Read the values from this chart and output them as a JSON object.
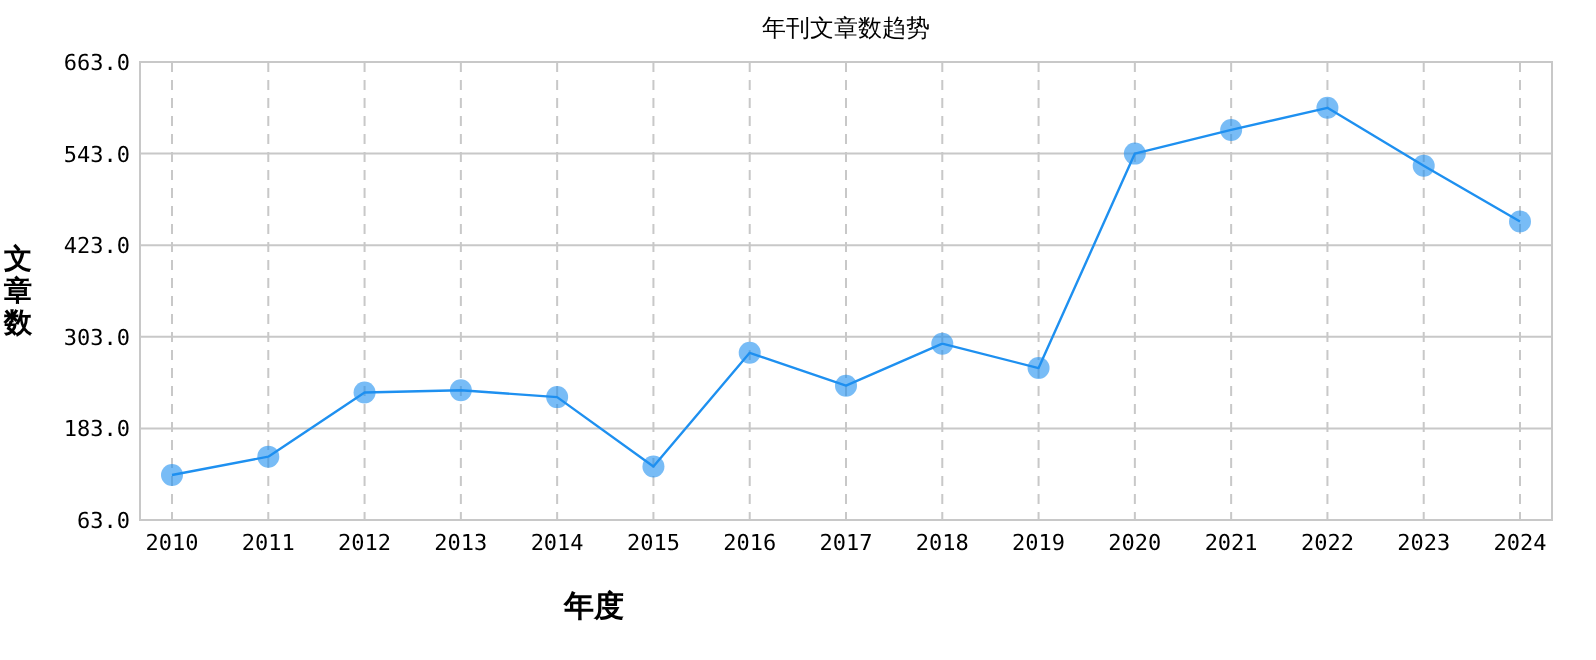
{
  "chart_data": {
    "type": "line",
    "title": "年刊文章数趋势",
    "xlabel": "年度",
    "ylabel": "文章数",
    "categories": [
      "2010",
      "2011",
      "2012",
      "2013",
      "2014",
      "2015",
      "2016",
      "2017",
      "2018",
      "2019",
      "2020",
      "2021",
      "2022",
      "2023",
      "2024"
    ],
    "series": [
      {
        "color": "#1e90f0",
        "values": [
          122,
          146,
          230,
          233,
          224,
          133,
          282,
          239,
          294,
          262,
          543,
          574,
          603,
          527,
          454
        ]
      }
    ],
    "ylim": [
      63,
      663
    ],
    "yticks": [
      {
        "value": 63,
        "label": "63.0"
      },
      {
        "value": 183,
        "label": "183.0"
      },
      {
        "value": 303,
        "label": "303.0"
      },
      {
        "value": 423,
        "label": "423.0"
      },
      {
        "value": 543,
        "label": "543.0"
      },
      {
        "value": 663,
        "label": "663.0"
      }
    ],
    "grid": true,
    "marker": "circle",
    "line_style": "solid"
  }
}
